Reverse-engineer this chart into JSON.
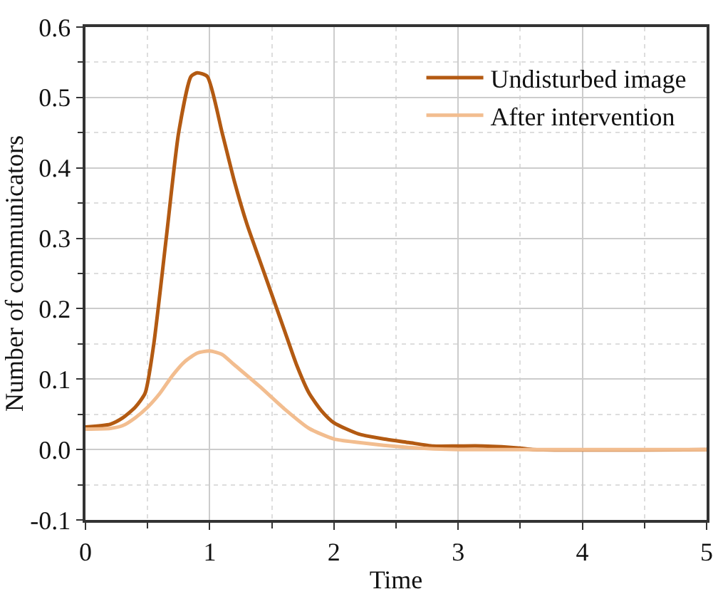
{
  "chart_data": {
    "type": "line",
    "xlabel": "Time",
    "ylabel": "Number of communicators",
    "xlim": [
      0,
      5
    ],
    "xticks": [
      0,
      1,
      2,
      3,
      4,
      5
    ],
    "ylim": [
      -0.1,
      0.6
    ],
    "yticks": [
      -0.1,
      {
        "value": 0,
        "label": "0.0"
      },
      0.1,
      0.2,
      0.3,
      0.4,
      0.5,
      0.6
    ],
    "grid": true,
    "legend": "top right",
    "marker": "none",
    "line_style": "solid",
    "series": [
      {
        "name": "Undisturbed image",
        "color": "#b35a12",
        "x": [
          0,
          0.2,
          0.3,
          0.4,
          0.48,
          0.55,
          0.65,
          0.75,
          0.85,
          0.9,
          0.98,
          1.1,
          1.2,
          1.3,
          1.4,
          1.5,
          1.6,
          1.7,
          1.8,
          1.9,
          2.0,
          2.2,
          2.4,
          2.6,
          2.8,
          3.0,
          3.2,
          3.5,
          3.6,
          5
        ],
        "values": [
          0.032,
          0.036,
          0.045,
          0.06,
          0.08,
          0.15,
          0.3,
          0.45,
          0.53,
          0.535,
          0.53,
          0.45,
          0.38,
          0.32,
          0.27,
          0.22,
          0.17,
          0.12,
          0.08,
          0.055,
          0.038,
          0.022,
          0.015,
          0.01,
          0.005,
          0.005,
          0.005,
          0.002,
          0,
          0
        ]
      },
      {
        "name": "After intervention",
        "color": "#f2bd8f",
        "x": [
          0,
          0.2,
          0.3,
          0.4,
          0.5,
          0.6,
          0.7,
          0.8,
          0.9,
          1.0,
          1.1,
          1.2,
          1.4,
          1.6,
          1.8,
          2.0,
          2.2,
          2.4,
          2.6,
          2.8,
          3.0,
          5.0
        ],
        "values": [
          0.029,
          0.03,
          0.034,
          0.045,
          0.06,
          0.08,
          0.105,
          0.125,
          0.137,
          0.14,
          0.135,
          0.12,
          0.09,
          0.058,
          0.03,
          0.015,
          0.01,
          0.006,
          0.003,
          0.001,
          0,
          0
        ]
      }
    ]
  }
}
